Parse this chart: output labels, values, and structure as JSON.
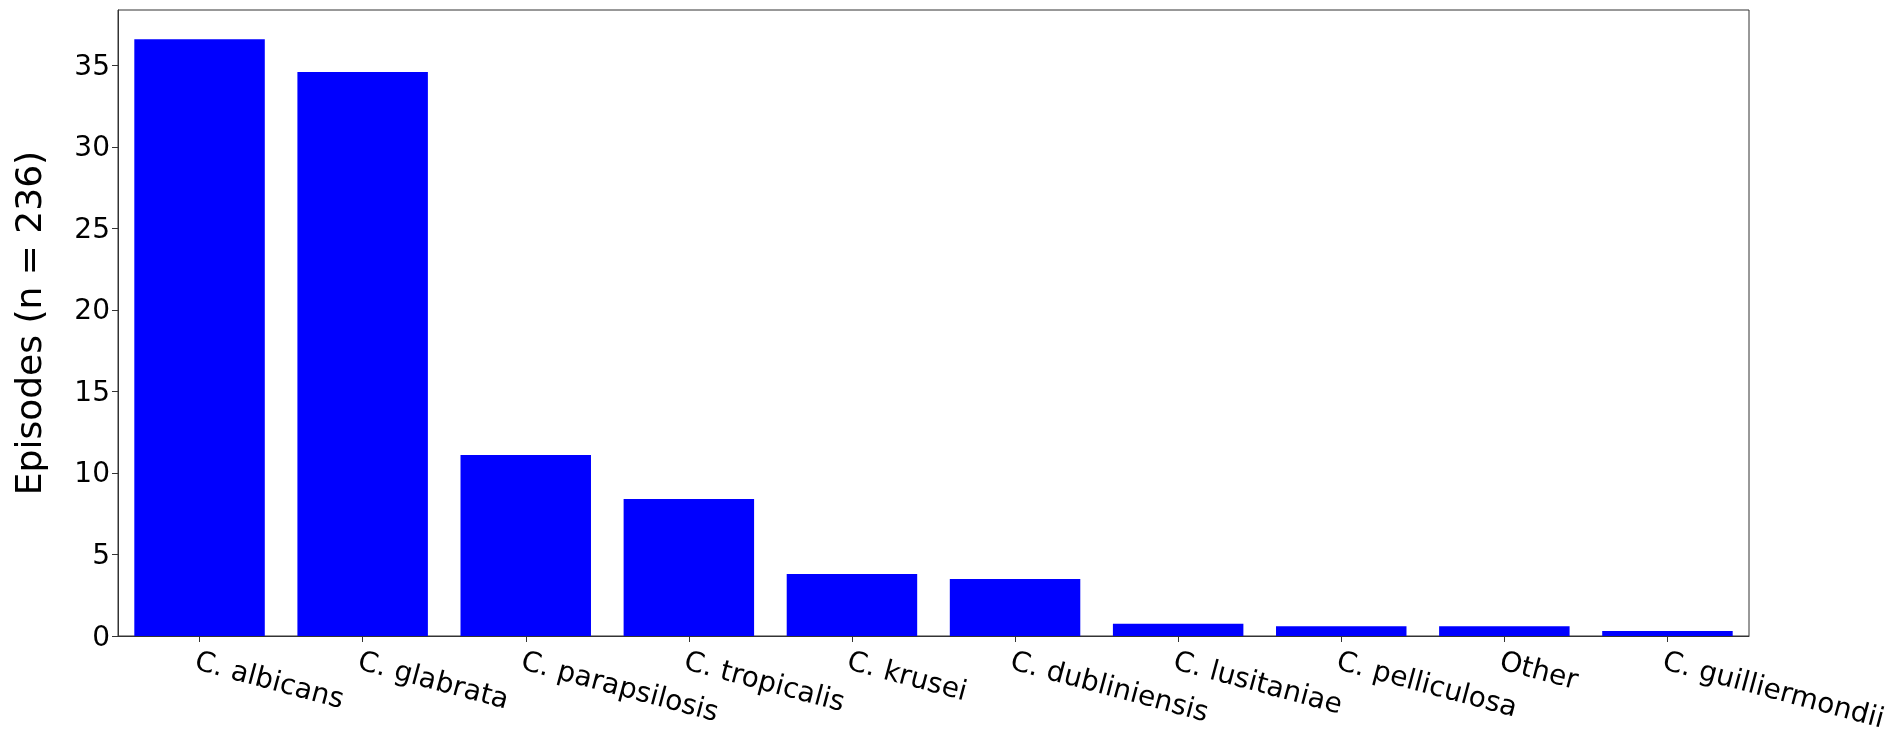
{
  "chart_data": {
    "type": "bar",
    "ylabel": "Episodes (n = 236)",
    "categories": [
      "C. albicans",
      "C. glabrata",
      "C. parapsilosis",
      "C. tropicalis",
      "C. krusei",
      "C. dubliniensis",
      "C. lusitaniae",
      "C. pelliculosa",
      "Other",
      "C. guilliermondii"
    ],
    "values": [
      36.6,
      34.6,
      11.1,
      8.4,
      3.8,
      3.5,
      0.75,
      0.6,
      0.6,
      0.3
    ],
    "color": "#0000ff",
    "ylim": [
      0,
      38.4
    ],
    "yticks": [
      0,
      5,
      10,
      15,
      20,
      25,
      30,
      35
    ],
    "grid": false
  }
}
